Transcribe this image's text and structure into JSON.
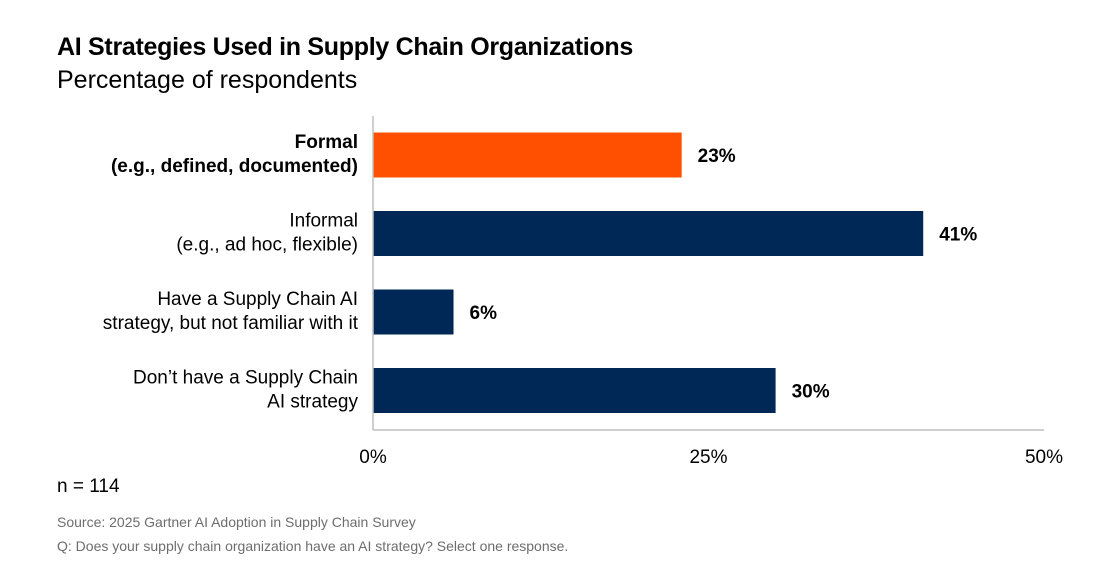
{
  "chart_data": {
    "type": "bar",
    "orientation": "horizontal",
    "title": "AI Strategies Used in Supply Chain Organizations",
    "subtitle": "Percentage of respondents",
    "categories": [
      [
        "Formal",
        "(e.g., defined, documented)"
      ],
      [
        "Informal",
        "(e.g., ad hoc, flexible)"
      ],
      [
        "Have a Supply Chain AI",
        "strategy, but not familiar with it"
      ],
      [
        "Don’t have a Supply Chain",
        "AI strategy"
      ]
    ],
    "values": [
      23,
      41,
      6,
      30
    ],
    "value_labels": [
      "23%",
      "41%",
      "6%",
      "30%"
    ],
    "highlight_index": 0,
    "xlim": [
      0,
      50
    ],
    "ticks": [
      0,
      25,
      50
    ],
    "tick_labels": [
      "0%",
      "25%",
      "50%"
    ],
    "colors": {
      "highlight": "#fe5000",
      "default": "#002856",
      "axis": "#bfbfbf"
    }
  },
  "footer": {
    "n": "n = 114",
    "source": "Source: 2025 Gartner AI Adoption in Supply Chain Survey",
    "question": "Q: Does your supply chain organization have an AI strategy? Select one response."
  }
}
